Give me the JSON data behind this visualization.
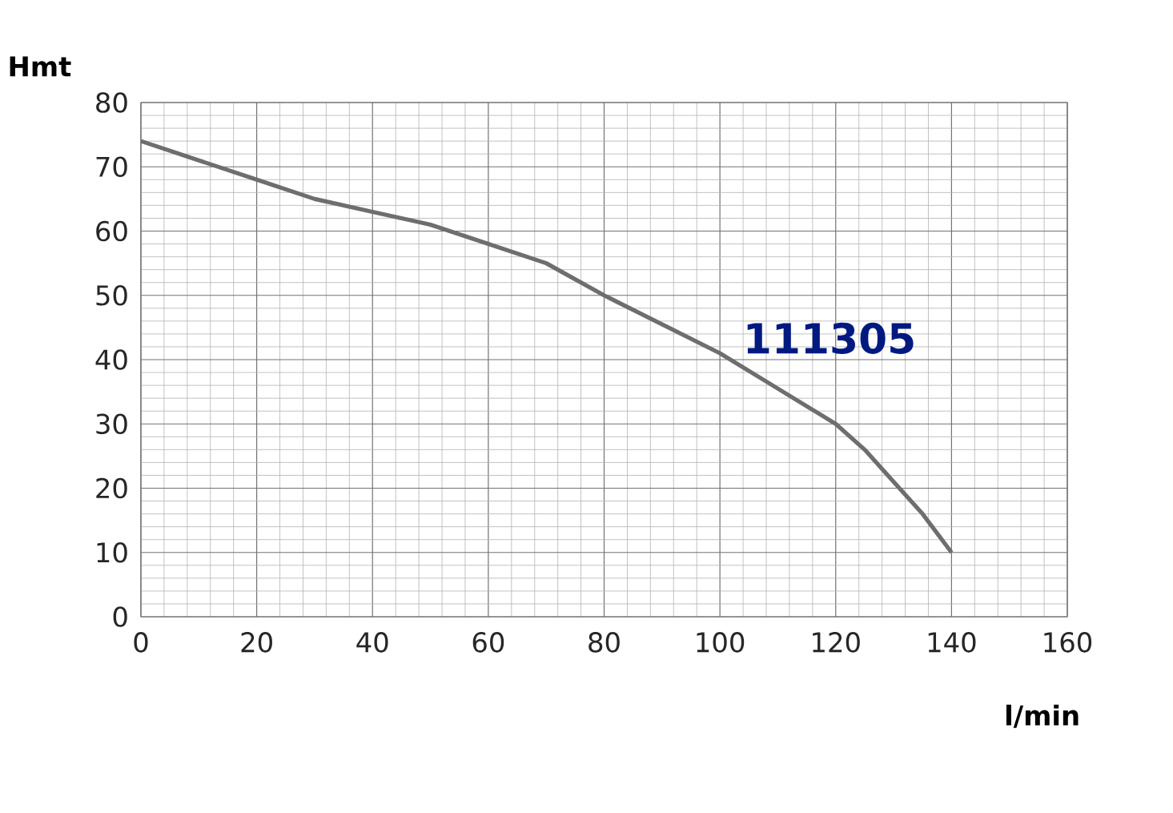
{
  "chart_data": {
    "type": "line",
    "xlabel": "l/min",
    "ylabel": "Hmt",
    "x": [
      0,
      10,
      20,
      30,
      40,
      50,
      60,
      70,
      80,
      90,
      100,
      110,
      120,
      125,
      130,
      135,
      140
    ],
    "series": [
      {
        "name": "111305",
        "color": "#6e6e6e",
        "values": [
          74,
          71,
          68,
          65,
          63,
          61,
          58,
          55,
          50,
          45.5,
          41,
          35.5,
          30,
          26,
          21,
          16,
          10
        ]
      }
    ],
    "xlim": [
      0,
      160
    ],
    "ylim": [
      0,
      80
    ],
    "xticks": [
      0,
      20,
      40,
      60,
      80,
      100,
      120,
      140,
      160
    ],
    "yticks": [
      0,
      10,
      20,
      30,
      40,
      50,
      60,
      70,
      80
    ],
    "grid": true
  }
}
